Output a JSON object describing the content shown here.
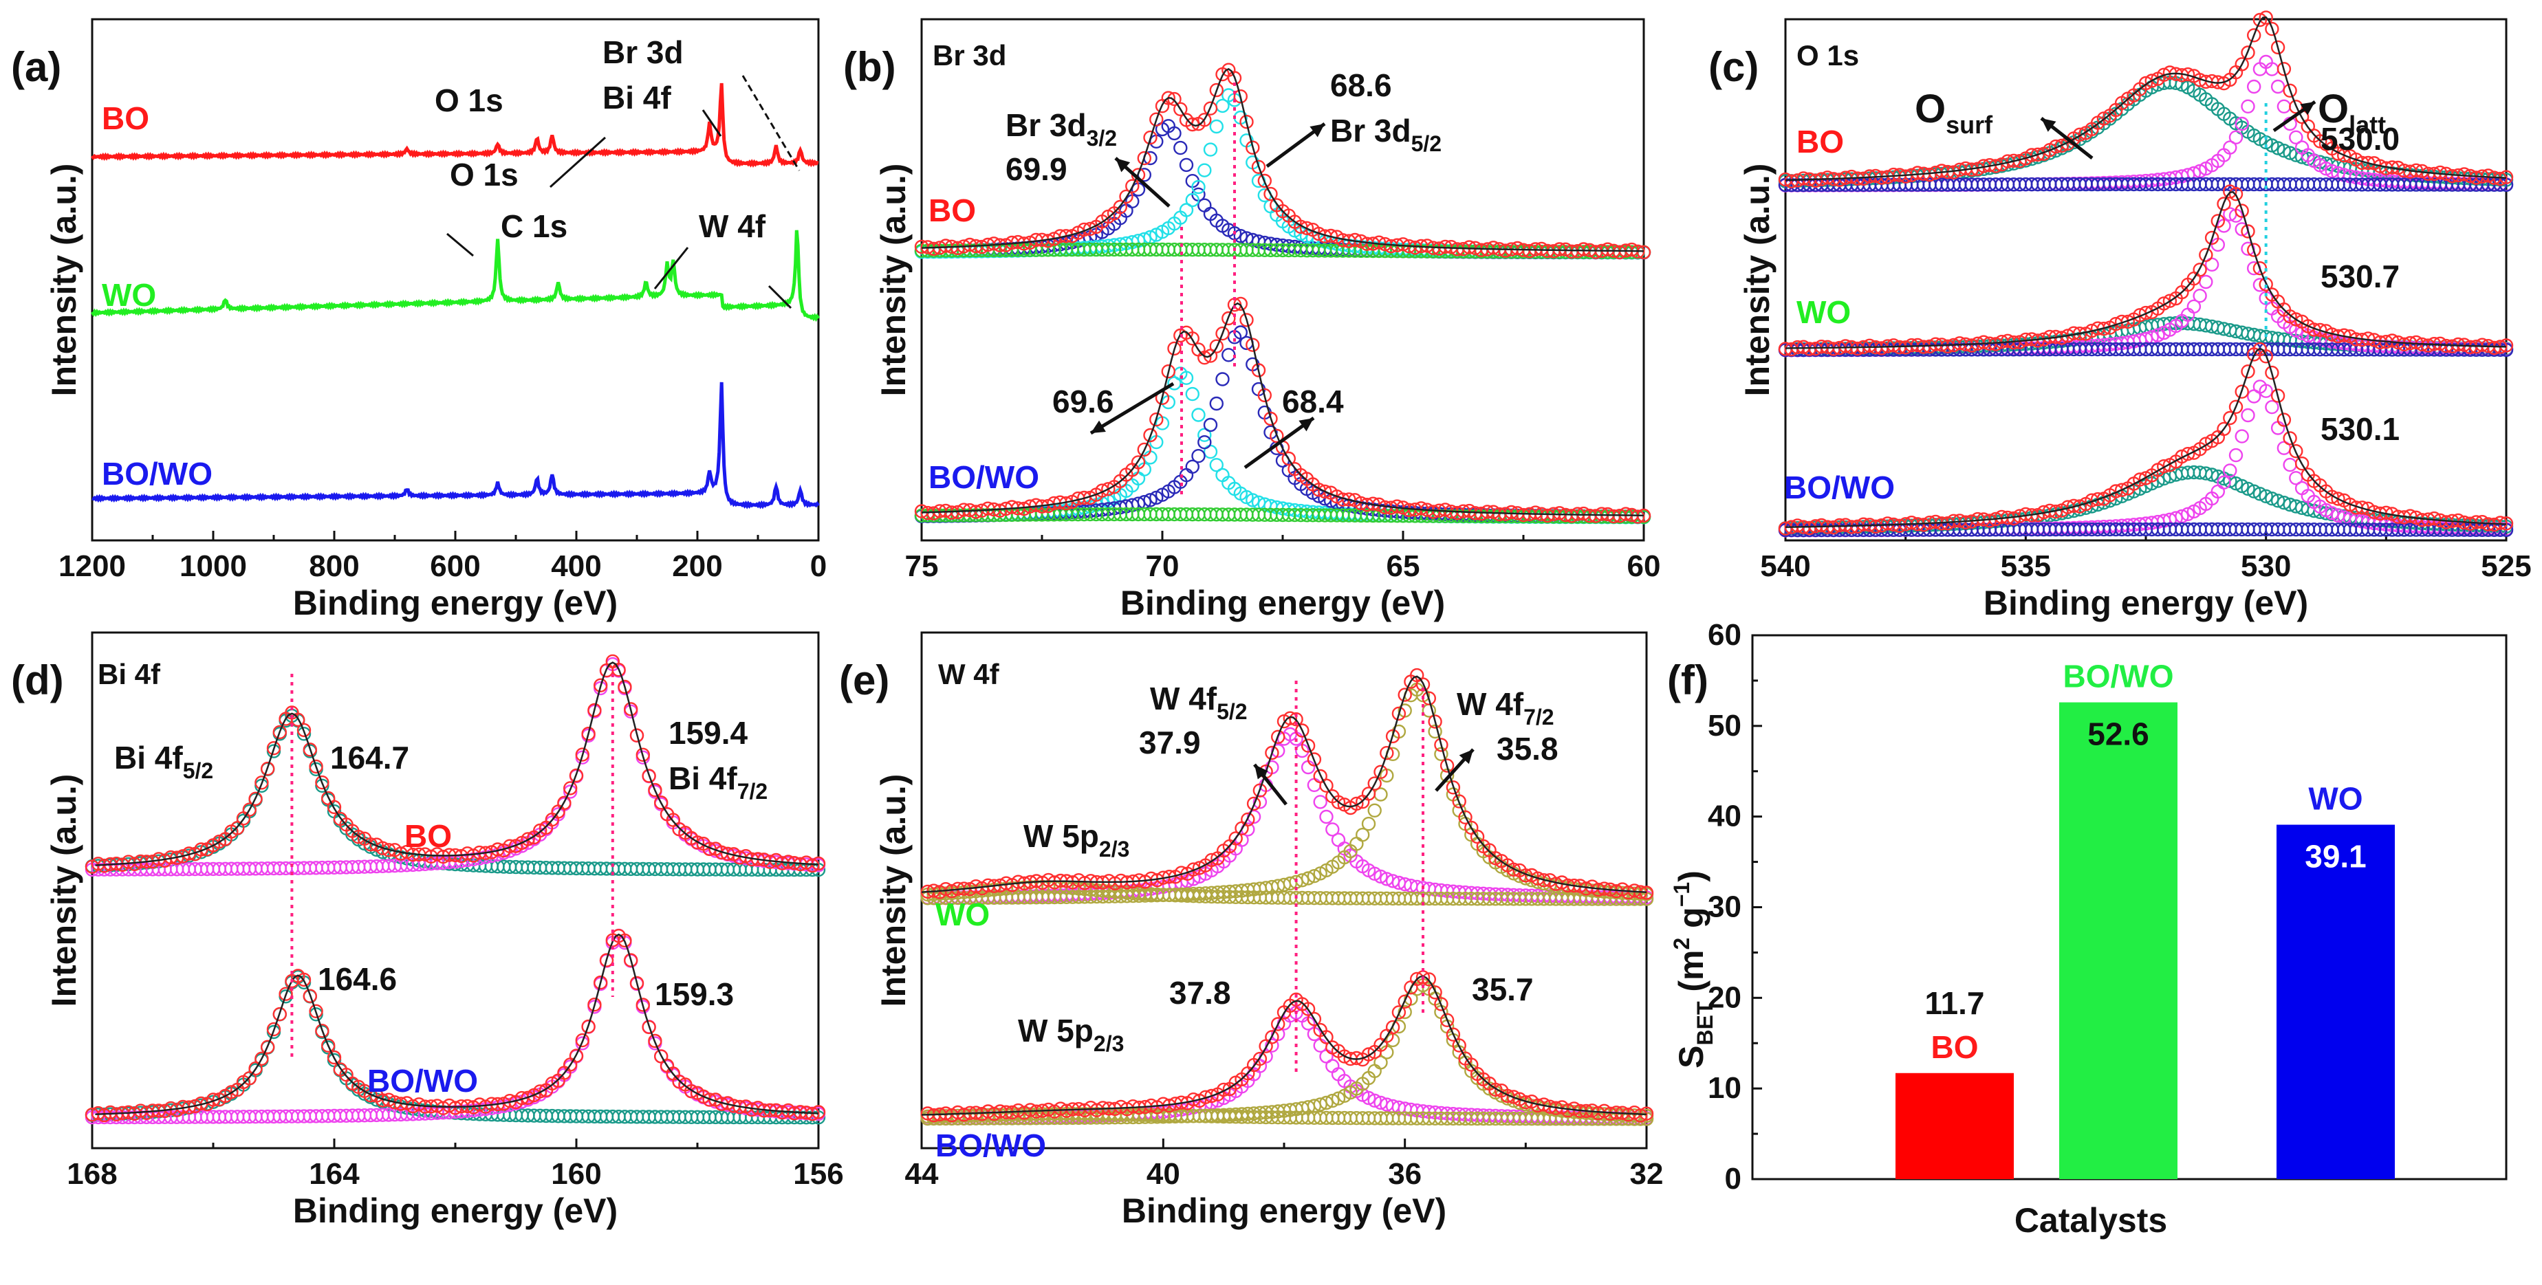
{
  "colors": {
    "bo": "#ff1a1a",
    "wo": "#22ee22",
    "bowo": "#1a1aee",
    "bar_bo": "#ff0000",
    "bar_bowo": "#22ee44",
    "bar_wo": "#0000ee",
    "teal": "#1a9a8a",
    "cyan": "#22e0e8",
    "navy": "#2a2ab8",
    "magenta": "#ee44ee",
    "olive": "#b0a840",
    "fit": "#ff3030",
    "exp": "#222222",
    "dotline": "#ff2080",
    "dotline_c": "#22d0e0"
  },
  "ylabel_intensity": "Intensity (a.u.)",
  "xlabel_be": "Binding energy (eV)",
  "panels": {
    "a": {
      "tag": "(a)",
      "xlim": [
        1200,
        0
      ],
      "xticks": [
        "1200",
        "1000",
        "800",
        "600",
        "400",
        "200",
        "0"
      ],
      "sample_labels": [
        "BO",
        "WO",
        "BO/WO"
      ],
      "peaks": {
        "o1s": "O 1s",
        "br3d": "Br 3d",
        "bi4f": "Bi 4f",
        "o1s_b": "O 1s",
        "c1s": "C 1s",
        "w4f": "W 4f"
      }
    },
    "b": {
      "tag": "(b)",
      "element": "Br 3d",
      "xlim": [
        75,
        60
      ],
      "xticks": [
        "75",
        "70",
        "65",
        "60"
      ],
      "sample_labels": [
        "BO",
        "BO/WO"
      ],
      "br32": "Br 3d",
      "br32_sub": "3/2",
      "br52": "Br 3d",
      "br52_sub": "5/2",
      "values": [
        "69.9",
        "68.6",
        "69.6",
        "68.4"
      ]
    },
    "c": {
      "tag": "(c)",
      "element": "O 1s",
      "xlim": [
        540,
        525
      ],
      "xticks": [
        "540",
        "535",
        "530",
        "525"
      ],
      "sample_labels": [
        "BO",
        "WO",
        "BO/WO"
      ],
      "o_main": "O",
      "surf_sub": "surf",
      "latt_sub": "latt",
      "values": [
        "530.0",
        "530.7",
        "530.1"
      ]
    },
    "d": {
      "tag": "(d)",
      "element": "Bi 4f",
      "xlim": [
        168,
        156
      ],
      "xticks": [
        "168",
        "164",
        "160",
        "156"
      ],
      "sample_labels": [
        "BO",
        "BO/WO"
      ],
      "bi52": "Bi 4f",
      "bi52_sub": "5/2",
      "bi72": "Bi 4f",
      "bi72_sub": "7/2",
      "values": [
        "164.7",
        "159.4",
        "164.6",
        "159.3"
      ]
    },
    "e": {
      "tag": "(e)",
      "element": "W 4f",
      "xlim": [
        44,
        32
      ],
      "xticks": [
        "44",
        "40",
        "36",
        "32"
      ],
      "sample_labels": [
        "WO",
        "BO/WO"
      ],
      "w52": "W 4f",
      "w52_sub": "5/2",
      "w72": "W 4f",
      "w72_sub": "7/2",
      "w5p": "W 5p",
      "w5p_sub": "2/3",
      "values": [
        "37.9",
        "35.8",
        "37.8",
        "35.7"
      ]
    },
    "f": {
      "tag": "(f)",
      "xlabel": "Catalysts",
      "ylabel_main": "S",
      "ylabel_sub": "BET",
      "ylabel_unit_open": " (m",
      "ylabel_sup1": "2",
      "ylabel_unit_mid": " g",
      "ylabel_sup2": "−1",
      "ylabel_unit_close": ")",
      "yticks": [
        "0",
        "10",
        "20",
        "30",
        "40",
        "50",
        "60"
      ]
    }
  },
  "chart_data": [
    {
      "panel": "a",
      "type": "line",
      "title": "",
      "xlabel": "Binding energy (eV)",
      "ylabel": "Intensity (a.u.)",
      "xlim": [
        1200,
        0
      ],
      "series": [
        {
          "name": "BO"
        },
        {
          "name": "WO"
        },
        {
          "name": "BO/WO"
        }
      ]
    },
    {
      "panel": "b",
      "type": "line",
      "title": "Br 3d",
      "xlabel": "Binding energy (eV)",
      "ylabel": "Intensity (a.u.)",
      "xlim": [
        75,
        60
      ],
      "series": [
        {
          "name": "BO",
          "peaks": [
            69.9,
            68.6
          ]
        },
        {
          "name": "BO/WO",
          "peaks": [
            69.6,
            68.4
          ]
        }
      ]
    },
    {
      "panel": "c",
      "type": "line",
      "title": "O 1s",
      "xlabel": "Binding energy (eV)",
      "ylabel": "Intensity (a.u.)",
      "xlim": [
        540,
        525
      ],
      "series": [
        {
          "name": "BO",
          "peaks": [
            530.0
          ]
        },
        {
          "name": "WO",
          "peaks": [
            530.7
          ]
        },
        {
          "name": "BO/WO",
          "peaks": [
            530.1
          ]
        }
      ]
    },
    {
      "panel": "d",
      "type": "line",
      "title": "Bi 4f",
      "xlabel": "Binding energy (eV)",
      "ylabel": "Intensity (a.u.)",
      "xlim": [
        168,
        156
      ],
      "series": [
        {
          "name": "BO",
          "peaks": [
            164.7,
            159.4
          ]
        },
        {
          "name": "BO/WO",
          "peaks": [
            164.6,
            159.3
          ]
        }
      ]
    },
    {
      "panel": "e",
      "type": "line",
      "title": "W 4f",
      "xlabel": "Binding energy (eV)",
      "ylabel": "Intensity (a.u.)",
      "xlim": [
        44,
        32
      ],
      "series": [
        {
          "name": "WO",
          "peaks": [
            37.9,
            35.8
          ]
        },
        {
          "name": "BO/WO",
          "peaks": [
            37.8,
            35.7
          ]
        }
      ]
    },
    {
      "panel": "f",
      "type": "bar",
      "title": "",
      "xlabel": "Catalysts",
      "ylabel": "S_BET (m2 g-1)",
      "ylim": [
        0,
        60
      ],
      "categories": [
        "BO",
        "BO/WO",
        "WO"
      ],
      "values": [
        11.7,
        52.6,
        39.1
      ],
      "value_labels": [
        "11.7",
        "52.6",
        "39.1"
      ]
    }
  ]
}
